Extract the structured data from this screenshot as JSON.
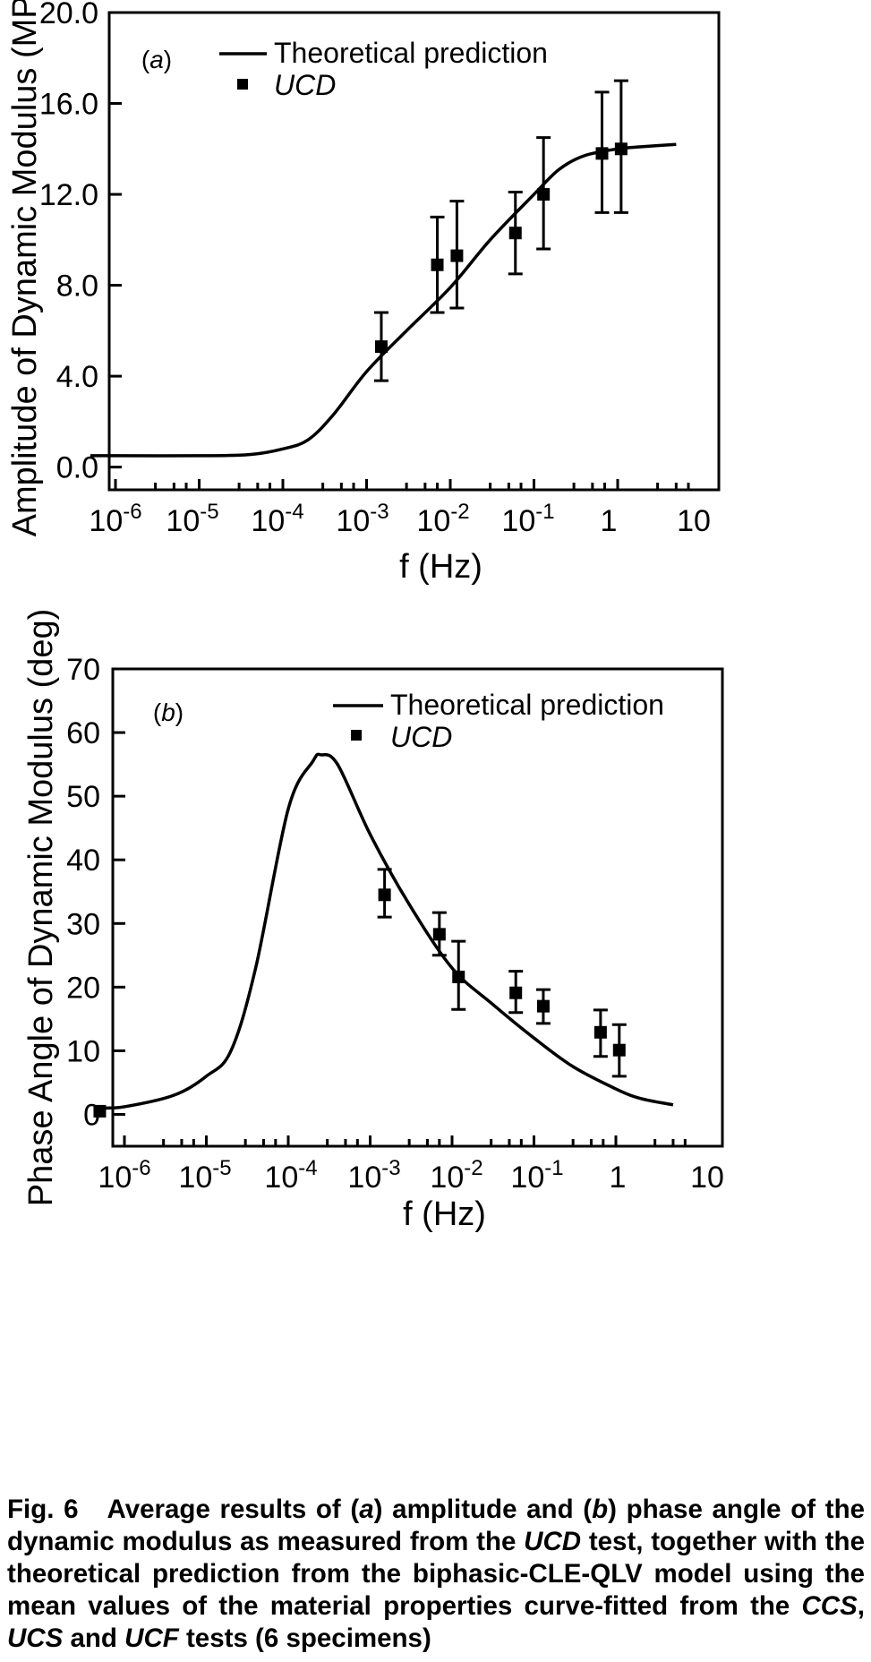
{
  "chart_data": [
    {
      "type": "line",
      "panel_label": "(a)",
      "xlabel": "f (Hz)",
      "ylabel": "Amplitude of Dynamic Modulus (MPa)",
      "xscale": "log",
      "xlim": [
        5e-07,
        10
      ],
      "ylim": [
        -1.0,
        20.0
      ],
      "x_tick_labels": [
        "10-6",
        "10-5",
        "10-4",
        "10-3",
        "10-2",
        "10-1",
        "1",
        "10"
      ],
      "y_ticks": [
        0.0,
        4.0,
        8.0,
        12.0,
        16.0,
        20.0
      ],
      "y_tick_labels": [
        "0.0",
        "4.0",
        "8.0",
        "12.0",
        "16.0",
        "20.0"
      ],
      "legend": {
        "placement": "top-center",
        "line_label": "Theoretical prediction",
        "marker_label": "UCD"
      },
      "series": [
        {
          "name": "Theoretical prediction",
          "kind": "line",
          "x": [
            5e-07,
            1e-06,
            1e-05,
            4e-05,
            0.0001,
            0.0002,
            0.0004,
            0.001,
            0.003,
            0.01,
            0.03,
            0.1,
            0.2,
            0.4,
            1,
            2,
            5
          ],
          "y": [
            0.5,
            0.5,
            0.5,
            0.55,
            0.8,
            1.2,
            2.3,
            4.2,
            6.0,
            7.9,
            10.0,
            12.0,
            13.1,
            13.7,
            14.0,
            14.1,
            14.2
          ]
        },
        {
          "name": "UCD",
          "kind": "scatter",
          "x": [
            0.0015,
            0.007,
            0.012,
            0.06,
            0.13,
            0.65,
            1.1
          ],
          "y": [
            5.3,
            8.9,
            9.3,
            10.3,
            12.0,
            13.8,
            14.0
          ],
          "err_low": [
            3.8,
            6.8,
            7.0,
            8.5,
            9.6,
            11.2,
            11.2
          ],
          "err_high": [
            6.8,
            11.0,
            11.7,
            12.1,
            14.5,
            16.5,
            17.0
          ]
        }
      ]
    },
    {
      "type": "line",
      "panel_label": "(b)",
      "xlabel": "f (Hz)",
      "ylabel": "Phase Angle of Dynamic Modulus (deg)",
      "xscale": "log",
      "xlim": [
        5e-07,
        10
      ],
      "ylim": [
        -5,
        70
      ],
      "x_tick_labels": [
        "10-6",
        "10-5",
        "10-4",
        "10-3",
        "10-2",
        "10-1",
        "1",
        "10"
      ],
      "y_ticks": [
        0,
        10,
        20,
        30,
        40,
        50,
        60,
        70
      ],
      "y_tick_labels": [
        "0",
        "10",
        "20",
        "30",
        "40",
        "50",
        "60",
        "70"
      ],
      "legend": {
        "placement": "top-right",
        "line_label": "Theoretical prediction",
        "marker_label": "UCD"
      },
      "series": [
        {
          "name": "Theoretical prediction",
          "kind": "line",
          "x": [
            5e-07,
            1e-06,
            4e-06,
            1e-05,
            2e-05,
            4e-05,
            0.0001,
            0.0002,
            0.00025,
            0.0004,
            0.001,
            0.003,
            0.01,
            0.03,
            0.1,
            0.3,
            1,
            2,
            5
          ],
          "y": [
            1,
            1.2,
            3,
            6,
            10,
            23,
            48,
            55.5,
            56.5,
            55,
            44,
            33,
            23,
            17.5,
            12,
            7.5,
            4,
            2.5,
            1.5
          ]
        },
        {
          "name": "UCD",
          "kind": "scatter",
          "x": [
            5e-07,
            0.0015,
            0.007,
            0.012,
            0.06,
            0.13,
            0.65,
            1.1
          ],
          "y": [
            0.5,
            34.5,
            28.3,
            21.6,
            19.1,
            17.0,
            12.9,
            10.1
          ],
          "err_low": [
            0.5,
            31.0,
            25.0,
            16.5,
            16.0,
            14.3,
            9.1,
            6.0
          ],
          "err_high": [
            0.5,
            38.5,
            31.7,
            27.2,
            22.5,
            19.6,
            16.4,
            14.1
          ]
        }
      ]
    }
  ],
  "caption": {
    "fig_label": "Fig. 6",
    "text_1": "Average results of (",
    "a": "a",
    "text_2": ") amplitude and (",
    "b": "b",
    "text_3": ") phase angle of the dynamic modulus as measured from the ",
    "ucd": "UCD",
    "text_4": " test, together with the theoretical prediction from the biphasic-CLE-QLV model using the mean values of the material properties curve-fitted from the ",
    "ccs": "CCS",
    "text_5": ",  ",
    "ucs": "UCS",
    "text_6": " and ",
    "ucf": "UCF",
    "text_7": " tests (6 specimens)"
  }
}
